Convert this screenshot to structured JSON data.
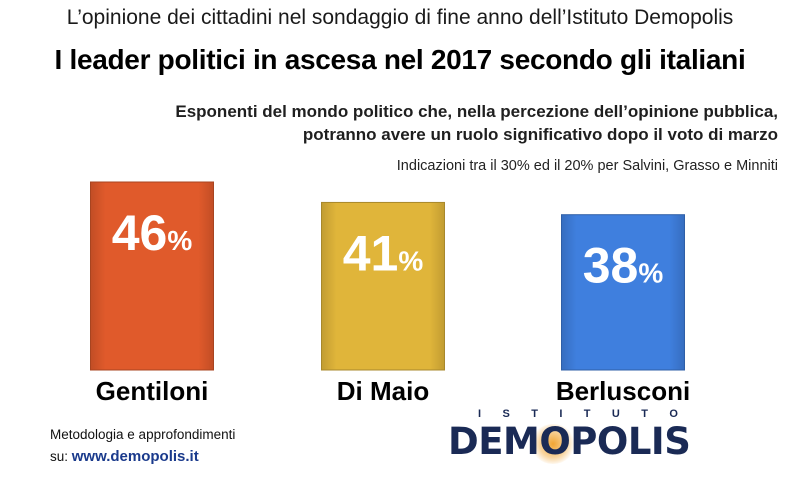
{
  "header": {
    "supertitle": "L’opinione dei cittadini nel sondaggio di fine anno dell’Istituto Demopolis",
    "title": "I leader politici in ascesa nel 2017 secondo gli italiani",
    "subtitle_line1": "Esponenti del mondo politico che, nella percezione dell’opinione pubblica,",
    "subtitle_line2": "potranno avere un ruolo significativo dopo il voto di marzo",
    "note": "Indicazioni tra il 30% ed il 20% per Salvini, Grasso e Minniti"
  },
  "chart_data": {
    "type": "bar",
    "categories": [
      "Gentiloni",
      "Di Maio",
      "Berlusconi"
    ],
    "values": [
      46,
      41,
      38
    ],
    "value_suffix": "%",
    "colors": [
      "#e05a2b",
      "#e0b53a",
      "#3f7fde"
    ],
    "title": "I leader politici in ascesa nel 2017 secondo gli italiani",
    "xlabel": "",
    "ylabel": "",
    "grid": false
  },
  "footer": {
    "method_label": "Metodologia e approfondimenti",
    "site_prefix": "su: ",
    "site_url": "www.demopolis.it"
  },
  "logo": {
    "top_letters": [
      "I",
      "S",
      "T",
      "I",
      "T",
      "U",
      "T",
      "O"
    ],
    "word_before": "DEM",
    "word_o": "O",
    "word_after": "POLIS"
  }
}
